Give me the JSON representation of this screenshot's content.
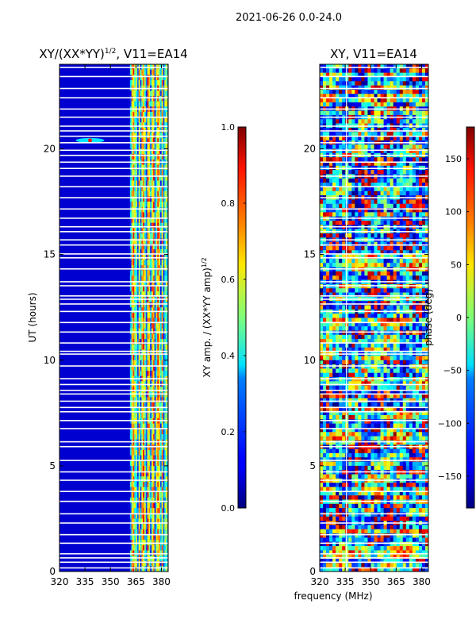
{
  "suptitle": "2021-06-26 0.0-24.0",
  "chart_data": [
    {
      "type": "heatmap",
      "title": "XY/(XX*YY)^1/2, V11=EA14",
      "title_main": "XY/(XX*YY)",
      "title_sup": "1/2",
      "title_rest": ", V11=EA14",
      "xlabel": "frequency (MHz)",
      "ylabel": "UT (hours)",
      "xlim": [
        320,
        384
      ],
      "ylim": [
        0,
        24
      ],
      "xticks": [
        320,
        335,
        350,
        365,
        380
      ],
      "yticks": [
        0,
        5,
        10,
        15,
        20
      ],
      "colormap": "jet",
      "colorbar": {
        "label": "XY amp. / (XX*YY amp)^1/2",
        "label_main": "XY amp. / (XX*YY amp)",
        "label_sup": "1/2",
        "range": [
          0.0,
          1.0
        ],
        "ticks": [
          "0.0",
          "0.2",
          "0.4",
          "0.6",
          "0.8",
          "1.0"
        ]
      },
      "description": "mostly low amplitude (~0.05) below 361 MHz; 361-383 MHz shows vertical bands of 0.3-0.9 with horizontal flagged (blank) rows throughout"
    },
    {
      "type": "heatmap",
      "title": "XY, V11=EA14",
      "xlabel": "frequency (MHz)",
      "ylabel": "",
      "xlim": [
        320,
        384
      ],
      "ylim": [
        0,
        24
      ],
      "xticks": [
        320,
        335,
        350,
        365,
        380
      ],
      "yticks": [
        0,
        5,
        10,
        15,
        20
      ],
      "colormap": "jet",
      "colorbar": {
        "label": "phase (deg)",
        "range": [
          -180,
          180
        ],
        "ticks": [
          "150",
          "100",
          "50",
          "0",
          "−50",
          "−100",
          "−150"
        ]
      },
      "description": "noisy phase pattern spanning -180..180 deg with horizontal banding and flagged rows"
    }
  ],
  "shared_xlabel": "frequency (MHz)",
  "colors": {
    "background": "#ffffff",
    "axis": "#000000",
    "flagged": "#ffffff"
  }
}
